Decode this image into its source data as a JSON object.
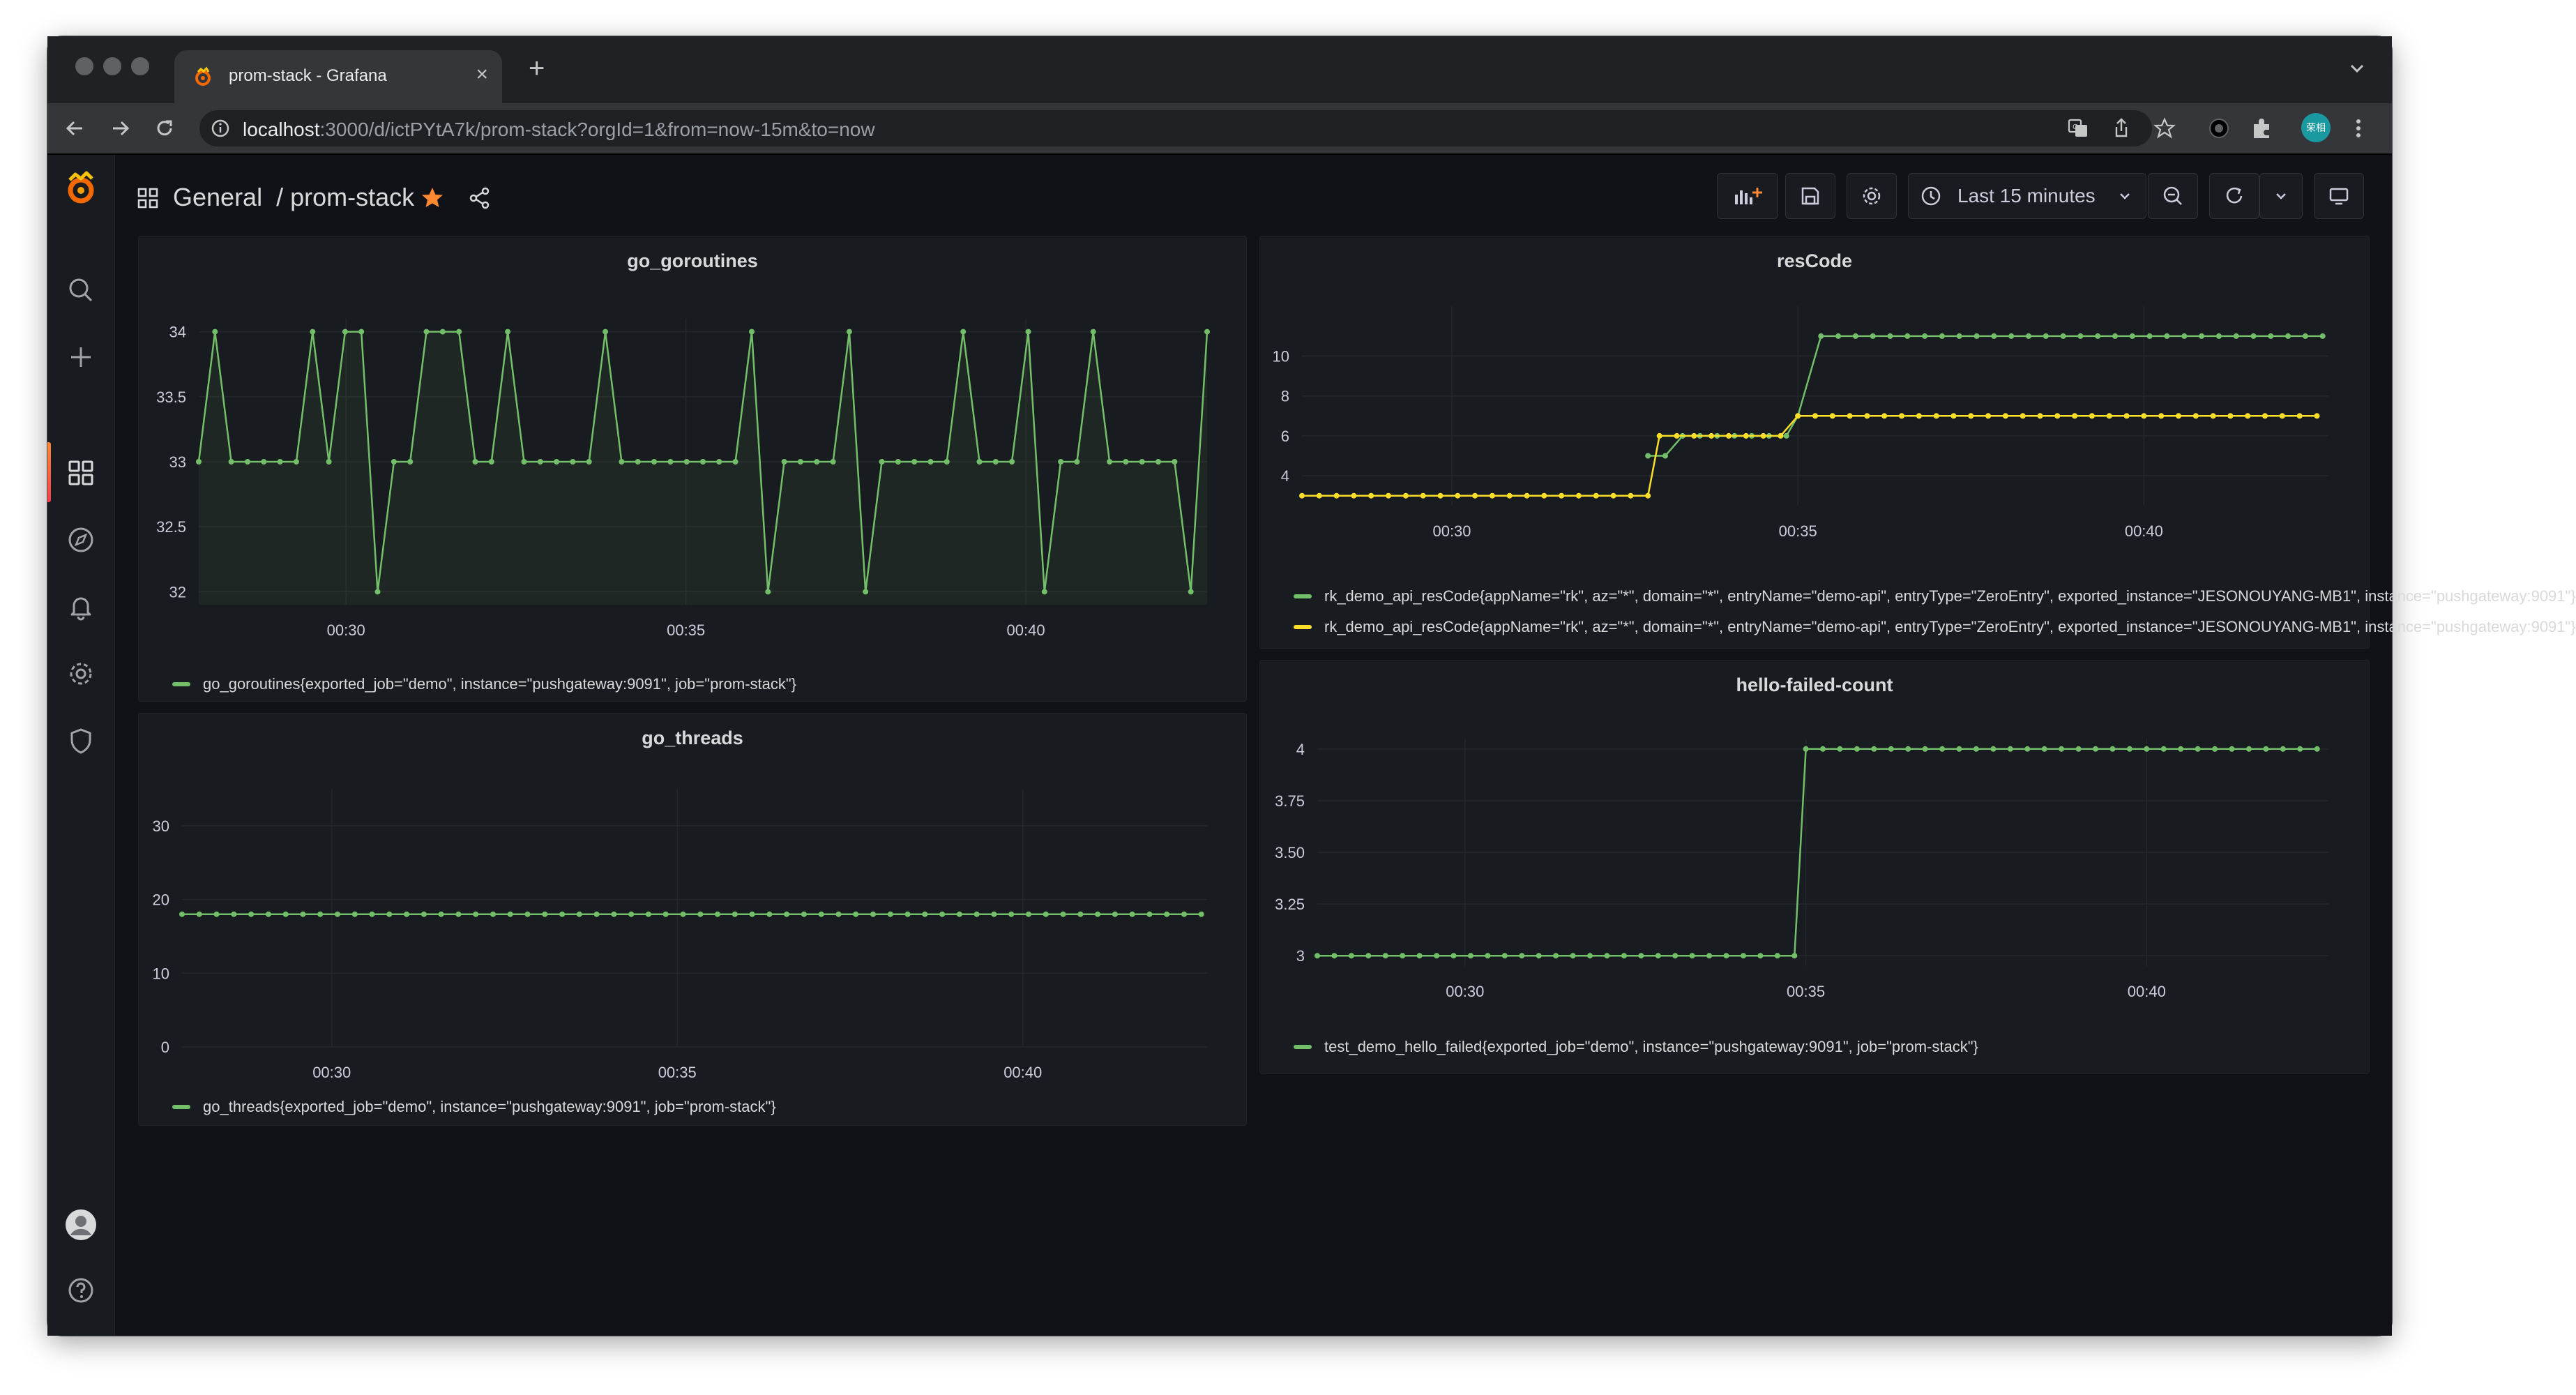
{
  "browser": {
    "tab_title": "prom-stack - Grafana",
    "url_host": "localhost",
    "url_rest": ":3000/d/ictPYtA7k/prom-stack?orgId=1&from=now-15m&to=now",
    "profile_label": "荣相"
  },
  "dashboard": {
    "folder": "General",
    "separator": "/",
    "name": "prom-stack",
    "time_range_label": "Last 15 minutes"
  },
  "colors": {
    "green": "#73bf69",
    "yellow": "#fade2a",
    "grafana_orange": "#ff8833",
    "background": "#111217",
    "panel": "#181b1f"
  },
  "sidebar": {
    "items": [
      "grafana-logo-icon",
      "search-icon",
      "plus-icon",
      "dashboards-icon",
      "explore-icon",
      "bell-icon",
      "gear-icon",
      "shield-icon",
      "avatar",
      "help-icon"
    ]
  },
  "panels": [
    {
      "key": "go_goroutines",
      "title": "go_goroutines",
      "legend": "go_goroutines{exported_job=\"demo\", instance=\"pushgateway:9091\", job=\"prom-stack\"}",
      "chart_data": {
        "type": "line",
        "title": "go_goroutines",
        "fill": true,
        "x_range": [
          "00:27:50",
          "00:42:40"
        ],
        "x_ticks": [
          "00:30",
          "00:35",
          "00:40"
        ],
        "y_ticks": [
          "32",
          "32.5",
          "33",
          "33.5",
          "34"
        ],
        "ylim": [
          31.9,
          34.1
        ],
        "series": [
          {
            "color": "green",
            "values": [
              33,
              34,
              33,
              33,
              33,
              33,
              33,
              34,
              33,
              34,
              34,
              32,
              33,
              33,
              34,
              34,
              34,
              33,
              33,
              34,
              33,
              33,
              33,
              33,
              33,
              34,
              33,
              33,
              33,
              33,
              33,
              33,
              33,
              33,
              34,
              32,
              33,
              33,
              33,
              33,
              34,
              32,
              33,
              33,
              33,
              33,
              33,
              34,
              33,
              33,
              33,
              34,
              32,
              33,
              33,
              34,
              33,
              33,
              33,
              33,
              33,
              32,
              34
            ]
          }
        ]
      }
    },
    {
      "key": "go_threads",
      "title": "go_threads",
      "legend": "go_threads{exported_job=\"demo\", instance=\"pushgateway:9091\", job=\"prom-stack\"}",
      "chart_data": {
        "type": "line",
        "title": "go_threads",
        "fill": false,
        "x_range": [
          "00:27:50",
          "00:42:40"
        ],
        "x_ticks": [
          "00:30",
          "00:35",
          "00:40"
        ],
        "y_ticks": [
          "0",
          "10",
          "20",
          "30"
        ],
        "ylim": [
          0,
          35
        ],
        "series": [
          {
            "color": "green",
            "constant": 18
          }
        ]
      }
    },
    {
      "key": "resCode",
      "title": "resCode",
      "chart_data": {
        "type": "line",
        "title": "resCode",
        "fill": false,
        "x_range": [
          "00:27:50",
          "00:42:40"
        ],
        "x_ticks": [
          "00:30",
          "00:35",
          "00:40"
        ],
        "y_ticks": [
          "4",
          "6",
          "8",
          "10"
        ],
        "ylim": [
          2.5,
          12.5
        ],
        "series": [
          {
            "color": "green",
            "legend": "rk_demo_api_resCode{appName=\"rk\", az=\"*\", domain=\"*\", entryName=\"demo-api\", entryType=\"ZeroEntry\", exported_instance=\"JESONOUYANG-MB1\", instance=\"pushgateway:9091\"}",
            "segments": [
              {
                "from": "00:32:50",
                "to": "00:33:10",
                "value": 5
              },
              {
                "from": "00:33:20",
                "to": "00:34:50",
                "value": 6
              },
              {
                "from": "00:35:00",
                "to": "00:35:10",
                "value": 7
              },
              {
                "from": "00:35:20",
                "to": "00:42:40",
                "value": 11
              }
            ]
          },
          {
            "color": "yellow",
            "legend": "rk_demo_api_resCode{appName=\"rk\", az=\"*\", domain=\"*\", entryName=\"demo-api\", entryType=\"ZeroEntry\", exported_instance=\"JESONOUYANG-MB1\", instance=\"pushgateway:9091\"}",
            "segments": [
              {
                "from": "00:27:50",
                "to": "00:32:50",
                "value": 3
              },
              {
                "from": "00:33:00",
                "to": "00:34:50",
                "value": 6
              },
              {
                "from": "00:35:00",
                "to": "00:42:40",
                "value": 7
              }
            ]
          }
        ]
      }
    },
    {
      "key": "hello_failed",
      "title": "hello-failed-count",
      "legend": "test_demo_hello_failed{exported_job=\"demo\", instance=\"pushgateway:9091\", job=\"prom-stack\"}",
      "chart_data": {
        "type": "line",
        "title": "hello-failed-count",
        "fill": false,
        "x_range": [
          "00:27:50",
          "00:42:40"
        ],
        "x_ticks": [
          "00:30",
          "00:35",
          "00:40"
        ],
        "y_ticks": [
          "3",
          "3.25",
          "3.50",
          "3.75",
          "4"
        ],
        "ylim": [
          2.95,
          4.05
        ],
        "series": [
          {
            "color": "green",
            "segments": [
              {
                "from": "00:27:50",
                "to": "00:34:50",
                "value": 3
              },
              {
                "from": "00:35:00",
                "to": "00:42:40",
                "value": 4
              }
            ]
          }
        ]
      }
    }
  ]
}
